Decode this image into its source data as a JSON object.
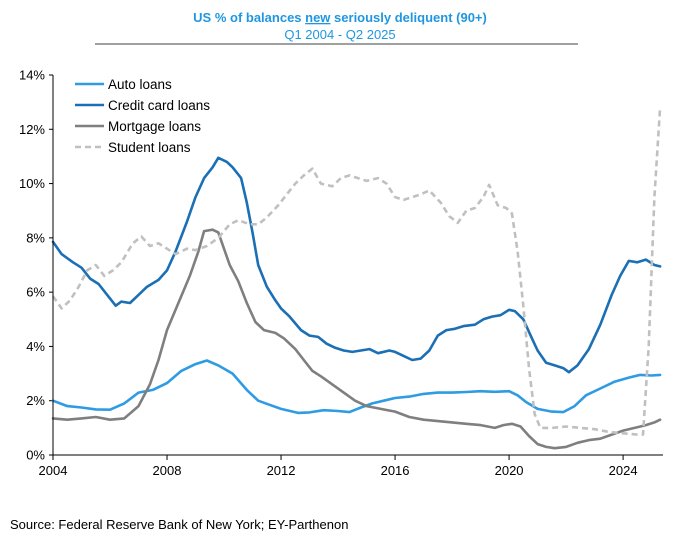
{
  "chart_data": {
    "type": "line",
    "title_pre": "US % of balances ",
    "title_underlined": "new",
    "title_post": " seriously deliquent (90+)",
    "subtitle": "Q1 2004 - Q2 2025",
    "xlabel": "",
    "ylabel": "",
    "xlim": [
      2004,
      2025.4
    ],
    "ylim": [
      0,
      14
    ],
    "x_ticks": [
      2004,
      2008,
      2012,
      2016,
      2020,
      2024
    ],
    "y_ticks": [
      0,
      2,
      4,
      6,
      8,
      10,
      12,
      14
    ],
    "y_tick_suffix": "%",
    "legend_position": "top-left",
    "series": [
      {
        "name": "Auto loans",
        "color": "#2e9be3",
        "dash": "",
        "points": [
          [
            2004,
            2.0
          ],
          [
            2004.5,
            1.8
          ],
          [
            2005,
            1.75
          ],
          [
            2005.5,
            1.68
          ],
          [
            2006,
            1.67
          ],
          [
            2006.5,
            1.9
          ],
          [
            2007,
            2.3
          ],
          [
            2007.5,
            2.4
          ],
          [
            2008,
            2.65
          ],
          [
            2008.5,
            3.1
          ],
          [
            2009,
            3.35
          ],
          [
            2009.4,
            3.48
          ],
          [
            2009.8,
            3.3
          ],
          [
            2010.3,
            3.0
          ],
          [
            2010.8,
            2.4
          ],
          [
            2011.2,
            2.0
          ],
          [
            2011.6,
            1.85
          ],
          [
            2012,
            1.7
          ],
          [
            2012.6,
            1.55
          ],
          [
            2013,
            1.57
          ],
          [
            2013.5,
            1.65
          ],
          [
            2014,
            1.62
          ],
          [
            2014.4,
            1.58
          ],
          [
            2014.8,
            1.75
          ],
          [
            2015.2,
            1.9
          ],
          [
            2015.6,
            2.0
          ],
          [
            2016,
            2.1
          ],
          [
            2016.5,
            2.15
          ],
          [
            2017,
            2.25
          ],
          [
            2017.5,
            2.3
          ],
          [
            2018,
            2.3
          ],
          [
            2018.5,
            2.32
          ],
          [
            2019,
            2.35
          ],
          [
            2019.5,
            2.33
          ],
          [
            2020,
            2.35
          ],
          [
            2020.3,
            2.2
          ],
          [
            2020.6,
            1.95
          ],
          [
            2021,
            1.7
          ],
          [
            2021.5,
            1.6
          ],
          [
            2021.9,
            1.58
          ],
          [
            2022.3,
            1.8
          ],
          [
            2022.7,
            2.2
          ],
          [
            2023.2,
            2.45
          ],
          [
            2023.7,
            2.7
          ],
          [
            2024.2,
            2.85
          ],
          [
            2024.6,
            2.95
          ],
          [
            2025,
            2.93
          ],
          [
            2025.3,
            2.95
          ]
        ]
      },
      {
        "name": "Credit card loans",
        "color": "#1a6fb5",
        "dash": "",
        "points": [
          [
            2004,
            7.85
          ],
          [
            2004.3,
            7.4
          ],
          [
            2004.7,
            7.1
          ],
          [
            2005,
            6.9
          ],
          [
            2005.3,
            6.5
          ],
          [
            2005.6,
            6.3
          ],
          [
            2005.9,
            5.9
          ],
          [
            2006.2,
            5.5
          ],
          [
            2006.4,
            5.65
          ],
          [
            2006.7,
            5.6
          ],
          [
            2007,
            5.9
          ],
          [
            2007.3,
            6.2
          ],
          [
            2007.7,
            6.45
          ],
          [
            2008,
            6.8
          ],
          [
            2008.3,
            7.5
          ],
          [
            2008.7,
            8.6
          ],
          [
            2009,
            9.5
          ],
          [
            2009.3,
            10.2
          ],
          [
            2009.6,
            10.6
          ],
          [
            2009.8,
            10.95
          ],
          [
            2010.1,
            10.8
          ],
          [
            2010.3,
            10.6
          ],
          [
            2010.6,
            10.2
          ],
          [
            2010.8,
            9.3
          ],
          [
            2011,
            8.2
          ],
          [
            2011.2,
            7.0
          ],
          [
            2011.5,
            6.2
          ],
          [
            2011.8,
            5.7
          ],
          [
            2012,
            5.4
          ],
          [
            2012.3,
            5.1
          ],
          [
            2012.7,
            4.6
          ],
          [
            2013,
            4.4
          ],
          [
            2013.3,
            4.35
          ],
          [
            2013.6,
            4.1
          ],
          [
            2013.9,
            3.95
          ],
          [
            2014.2,
            3.85
          ],
          [
            2014.5,
            3.8
          ],
          [
            2014.8,
            3.85
          ],
          [
            2015.1,
            3.9
          ],
          [
            2015.4,
            3.75
          ],
          [
            2015.8,
            3.85
          ],
          [
            2016,
            3.8
          ],
          [
            2016.3,
            3.65
          ],
          [
            2016.6,
            3.5
          ],
          [
            2016.9,
            3.55
          ],
          [
            2017.2,
            3.85
          ],
          [
            2017.5,
            4.4
          ],
          [
            2017.8,
            4.6
          ],
          [
            2018.1,
            4.65
          ],
          [
            2018.4,
            4.75
          ],
          [
            2018.8,
            4.8
          ],
          [
            2019.1,
            5.0
          ],
          [
            2019.4,
            5.1
          ],
          [
            2019.7,
            5.15
          ],
          [
            2020,
            5.35
          ],
          [
            2020.2,
            5.3
          ],
          [
            2020.5,
            5.0
          ],
          [
            2020.8,
            4.3
          ],
          [
            2021,
            3.85
          ],
          [
            2021.3,
            3.4
          ],
          [
            2021.6,
            3.3
          ],
          [
            2021.9,
            3.2
          ],
          [
            2022.1,
            3.05
          ],
          [
            2022.4,
            3.3
          ],
          [
            2022.8,
            3.9
          ],
          [
            2023.2,
            4.8
          ],
          [
            2023.6,
            5.9
          ],
          [
            2023.9,
            6.6
          ],
          [
            2024.2,
            7.15
          ],
          [
            2024.5,
            7.1
          ],
          [
            2024.8,
            7.2
          ],
          [
            2025.1,
            7.0
          ],
          [
            2025.3,
            6.95
          ]
        ]
      },
      {
        "name": "Mortgage loans",
        "color": "#7f7f7f",
        "dash": "",
        "points": [
          [
            2004,
            1.35
          ],
          [
            2004.5,
            1.3
          ],
          [
            2005,
            1.35
          ],
          [
            2005.5,
            1.4
          ],
          [
            2006,
            1.3
          ],
          [
            2006.5,
            1.35
          ],
          [
            2007,
            1.8
          ],
          [
            2007.4,
            2.6
          ],
          [
            2007.7,
            3.5
          ],
          [
            2008,
            4.6
          ],
          [
            2008.4,
            5.6
          ],
          [
            2008.8,
            6.6
          ],
          [
            2009.1,
            7.5
          ],
          [
            2009.3,
            8.25
          ],
          [
            2009.6,
            8.3
          ],
          [
            2009.8,
            8.2
          ],
          [
            2010,
            7.6
          ],
          [
            2010.2,
            7.0
          ],
          [
            2010.5,
            6.4
          ],
          [
            2010.8,
            5.6
          ],
          [
            2011.1,
            4.9
          ],
          [
            2011.4,
            4.6
          ],
          [
            2011.8,
            4.5
          ],
          [
            2012.1,
            4.3
          ],
          [
            2012.5,
            3.9
          ],
          [
            2012.8,
            3.5
          ],
          [
            2013.1,
            3.1
          ],
          [
            2013.4,
            2.9
          ],
          [
            2013.8,
            2.6
          ],
          [
            2014.2,
            2.3
          ],
          [
            2014.6,
            2.0
          ],
          [
            2015,
            1.8
          ],
          [
            2015.5,
            1.7
          ],
          [
            2016,
            1.6
          ],
          [
            2016.5,
            1.4
          ],
          [
            2017,
            1.3
          ],
          [
            2017.5,
            1.25
          ],
          [
            2018,
            1.2
          ],
          [
            2018.5,
            1.15
          ],
          [
            2019,
            1.1
          ],
          [
            2019.5,
            1.0
          ],
          [
            2019.8,
            1.1
          ],
          [
            2020.1,
            1.15
          ],
          [
            2020.4,
            1.05
          ],
          [
            2020.7,
            0.7
          ],
          [
            2021,
            0.4
          ],
          [
            2021.3,
            0.3
          ],
          [
            2021.6,
            0.25
          ],
          [
            2022,
            0.3
          ],
          [
            2022.4,
            0.45
          ],
          [
            2022.8,
            0.55
          ],
          [
            2023.2,
            0.6
          ],
          [
            2023.6,
            0.75
          ],
          [
            2024,
            0.9
          ],
          [
            2024.4,
            1.0
          ],
          [
            2024.8,
            1.1
          ],
          [
            2025.1,
            1.2
          ],
          [
            2025.3,
            1.3
          ]
        ]
      },
      {
        "name": "Student loans",
        "color": "#c0c0c0",
        "dash": "6,4",
        "points": [
          [
            2004,
            5.85
          ],
          [
            2004.3,
            5.4
          ],
          [
            2004.6,
            5.7
          ],
          [
            2004.9,
            6.2
          ],
          [
            2005.2,
            6.8
          ],
          [
            2005.5,
            7.0
          ],
          [
            2005.8,
            6.6
          ],
          [
            2006.1,
            6.8
          ],
          [
            2006.4,
            7.1
          ],
          [
            2006.8,
            7.8
          ],
          [
            2007.1,
            8.05
          ],
          [
            2007.4,
            7.7
          ],
          [
            2007.7,
            7.8
          ],
          [
            2008,
            7.6
          ],
          [
            2008.3,
            7.4
          ],
          [
            2008.7,
            7.6
          ],
          [
            2009,
            7.55
          ],
          [
            2009.4,
            7.7
          ],
          [
            2009.8,
            8.0
          ],
          [
            2010.2,
            8.5
          ],
          [
            2010.5,
            8.65
          ],
          [
            2010.9,
            8.5
          ],
          [
            2011.2,
            8.5
          ],
          [
            2011.5,
            8.75
          ],
          [
            2011.9,
            9.2
          ],
          [
            2012.2,
            9.6
          ],
          [
            2012.5,
            10.0
          ],
          [
            2012.8,
            10.3
          ],
          [
            2013.1,
            10.55
          ],
          [
            2013.4,
            10.0
          ],
          [
            2013.8,
            9.9
          ],
          [
            2014.1,
            10.2
          ],
          [
            2014.4,
            10.3
          ],
          [
            2014.7,
            10.2
          ],
          [
            2015,
            10.1
          ],
          [
            2015.4,
            10.2
          ],
          [
            2015.7,
            10.0
          ],
          [
            2016,
            9.5
          ],
          [
            2016.3,
            9.4
          ],
          [
            2016.6,
            9.5
          ],
          [
            2016.9,
            9.6
          ],
          [
            2017.2,
            9.75
          ],
          [
            2017.6,
            9.3
          ],
          [
            2017.9,
            8.8
          ],
          [
            2018.2,
            8.55
          ],
          [
            2018.5,
            9.0
          ],
          [
            2018.8,
            9.1
          ],
          [
            2019.1,
            9.5
          ],
          [
            2019.3,
            9.95
          ],
          [
            2019.6,
            9.2
          ],
          [
            2019.9,
            9.1
          ],
          [
            2020.1,
            8.9
          ],
          [
            2020.3,
            7.5
          ],
          [
            2020.5,
            5.5
          ],
          [
            2020.7,
            3.2
          ],
          [
            2020.9,
            1.5
          ],
          [
            2021.1,
            1.0
          ],
          [
            2021.5,
            1.0
          ],
          [
            2022,
            1.05
          ],
          [
            2022.5,
            1.0
          ],
          [
            2023,
            0.95
          ],
          [
            2023.5,
            0.85
          ],
          [
            2024,
            0.8
          ],
          [
            2024.5,
            0.75
          ],
          [
            2024.7,
            0.75
          ],
          [
            2024.9,
            4.0
          ],
          [
            2025.1,
            9.5
          ],
          [
            2025.3,
            12.8
          ]
        ]
      }
    ]
  },
  "source": "Source: Federal Reserve Bank of New York; EY-Parthenon"
}
